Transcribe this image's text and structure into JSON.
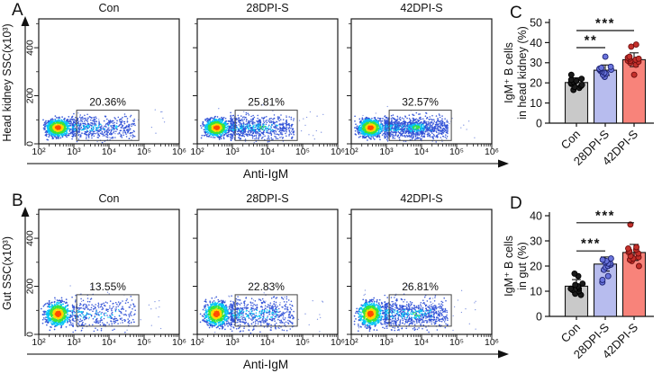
{
  "flow_rows": [
    {
      "panel_letter": "A",
      "y_axis_label": "Head kidney SSC(x10³)",
      "x_axis_label": "Anti-IgM",
      "y_tick_labels": [
        "0",
        "200",
        "400"
      ],
      "y_tick_values": [
        0,
        200,
        400
      ],
      "y_minor_values": [
        100,
        300,
        500
      ],
      "y_max_ssc": 520,
      "x_tick_labels": [
        "10²",
        "10³",
        "10⁴",
        "10⁵",
        "10⁶"
      ],
      "gate_log10_x": [
        3.08,
        4.85
      ],
      "gate_ssc_y": [
        14,
        140
      ],
      "cluster_ssc": 67,
      "plots": [
        {
          "title": "Con",
          "gate_percent": "20.36%"
        },
        {
          "title": "28DPI-S",
          "gate_percent": "25.81%"
        },
        {
          "title": "42DPI-S",
          "gate_percent": "32.57%"
        }
      ]
    },
    {
      "panel_letter": "B",
      "y_axis_label": "Gut SSC(x10³)",
      "x_axis_label": "Anti-IgM",
      "y_tick_labels": [
        "0",
        "200",
        "400"
      ],
      "y_tick_values": [
        0,
        200,
        400
      ],
      "y_minor_values": [
        100,
        300,
        500
      ],
      "y_max_ssc": 520,
      "x_tick_labels": [
        "10²",
        "10³",
        "10⁴",
        "10⁵",
        "10⁶"
      ],
      "gate_log10_x": [
        3.08,
        4.85
      ],
      "gate_ssc_y": [
        34,
        165
      ],
      "cluster_ssc": 85,
      "plots": [
        {
          "title": "Con",
          "gate_percent": "13.55%"
        },
        {
          "title": "28DPI-S",
          "gate_percent": "22.83%"
        },
        {
          "title": "42DPI-S",
          "gate_percent": "26.81%"
        }
      ]
    }
  ],
  "bar_panels": [
    {
      "panel_letter": "C",
      "chart_index": 2
    },
    {
      "panel_letter": "D",
      "chart_index": 3
    }
  ],
  "chart_data": [
    {
      "type": "scatter",
      "panel": "A",
      "xlabel": "Anti-IgM",
      "ylabel": "Head kidney SSC(x10³)",
      "x_log10_range": [
        2,
        6
      ],
      "y_ticks": [
        0,
        200,
        400
      ],
      "conditions": [
        "Con",
        "28DPI-S",
        "42DPI-S"
      ],
      "gate_percentages": [
        20.36,
        25.81,
        32.57
      ]
    },
    {
      "type": "scatter",
      "panel": "B",
      "xlabel": "Anti-IgM",
      "ylabel": "Gut SSC(x10³)",
      "x_log10_range": [
        2,
        6
      ],
      "y_ticks": [
        0,
        200,
        400
      ],
      "conditions": [
        "Con",
        "28DPI-S",
        "42DPI-S"
      ],
      "gate_percentages": [
        13.55,
        22.83,
        26.81
      ]
    },
    {
      "type": "bar",
      "panel": "C",
      "ylabel_line1": "IgM⁺ B cells",
      "ylabel_line2": "in head kidney (%)",
      "categories": [
        "Con",
        "28DPI-S",
        "42DPI-S"
      ],
      "values": [
        20.2,
        26.3,
        31.5
      ],
      "errors": [
        2.3,
        2.6,
        3.4
      ],
      "points": [
        [
          16.5,
          17.5,
          18,
          18.5,
          19,
          19.5,
          20,
          20.5,
          21,
          21.5,
          22,
          24
        ],
        [
          23,
          24,
          24.5,
          25,
          25.5,
          26,
          26.5,
          26.5,
          27,
          27.5,
          28,
          33
        ],
        [
          24,
          29,
          30,
          30.5,
          31,
          31,
          31.5,
          32,
          32,
          32.5,
          33,
          38,
          39
        ]
      ],
      "bar_colors": [
        "#c9c9c9",
        "#b7bcee",
        "#f8837a"
      ],
      "point_colors": [
        "#1a1a1a",
        "#6a74dc",
        "#c4302b"
      ],
      "point_strokes": [
        "#000000",
        "#1c2270",
        "#6e0e0e"
      ],
      "ylim": [
        0,
        50
      ],
      "yticks": [
        0,
        10,
        20,
        30,
        40,
        50
      ],
      "significance": [
        {
          "from": 0,
          "to": 1,
          "y": 37.5,
          "label": "**"
        },
        {
          "from": 0,
          "to": 2,
          "y": 46,
          "label": "***"
        }
      ]
    },
    {
      "type": "bar",
      "panel": "D",
      "ylabel_line1": "IgM⁺ B cells",
      "ylabel_line2": "in gut (%)",
      "categories": [
        "Con",
        "28DPI-S",
        "42DPI-S"
      ],
      "values": [
        12,
        20.8,
        25.4
      ],
      "errors": [
        2.6,
        2.8,
        3.2
      ],
      "points": [
        [
          8.5,
          9,
          10,
          10.5,
          11,
          11,
          11.5,
          12,
          12.5,
          13,
          16,
          17
        ],
        [
          13.5,
          14.5,
          16,
          18.5,
          19.5,
          20,
          20.5,
          21,
          21,
          21.5,
          22,
          22.5,
          23
        ],
        [
          20,
          22,
          22.5,
          23,
          23.5,
          24,
          25,
          25.5,
          26,
          26.5,
          27,
          27.5,
          36.5
        ]
      ],
      "bar_colors": [
        "#c9c9c9",
        "#b7bcee",
        "#f8837a"
      ],
      "point_colors": [
        "#1a1a1a",
        "#6a74dc",
        "#c4302b"
      ],
      "point_strokes": [
        "#000000",
        "#1c2270",
        "#6e0e0e"
      ],
      "ylim": [
        0,
        40
      ],
      "yticks": [
        0,
        10,
        20,
        30,
        40
      ],
      "significance": [
        {
          "from": 0,
          "to": 1,
          "y": 26,
          "label": "***"
        },
        {
          "from": 0,
          "to": 2,
          "y": 37.2,
          "label": "***"
        }
      ]
    }
  ],
  "colors": {
    "density_core": "#ff4b00",
    "density_2": "#ffd800",
    "density_3": "#3ae53a",
    "density_4": "#00c4f5",
    "density_outer": "#2d4fd6",
    "axis_arrow": "#555555",
    "gate_stroke": "#444444"
  }
}
